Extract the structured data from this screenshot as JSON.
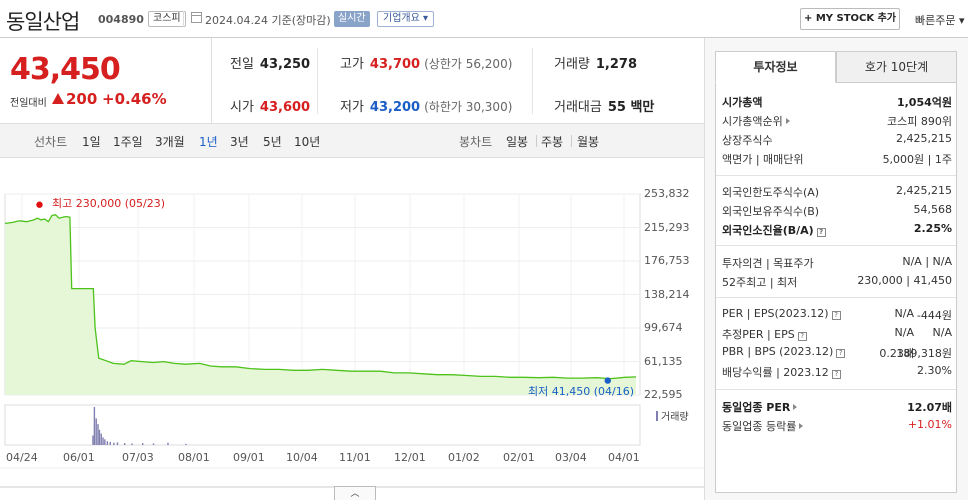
{
  "header": {
    "name": "동일산업",
    "code": "004890",
    "market": "코스피",
    "date": "2024.04.24  기준(장마감)",
    "realtime": "실시간",
    "company_overview": "기업개요 ▾",
    "mystock": "+ MY STOCK 추가",
    "quick_order": "빠른주문 ▾"
  },
  "price": {
    "current": "43,450",
    "compare_label": "전일대비",
    "change": "200",
    "change_pct": "+0.46%"
  },
  "quote": {
    "prev_label": "전일",
    "prev": "43,250",
    "high_label": "고가",
    "high": "43,700",
    "upper_limit": "(상한가 56,200)",
    "volume_label": "거래량",
    "volume": "1,278",
    "open_label": "시가",
    "open": "43,600",
    "low_label": "저가",
    "low": "43,200",
    "lower_limit": "(하한가 30,300)",
    "amount_label": "거래대금",
    "amount": "55 백만"
  },
  "tabs": {
    "line_label": "선차트",
    "periods": [
      "1일",
      "1주일",
      "3개월",
      "1년",
      "3년",
      "5년",
      "10년"
    ],
    "candle_label": "봉차트",
    "candles": [
      "일봉",
      "주봉",
      "월봉"
    ]
  },
  "chart_data": {
    "type": "line",
    "x_ticks": [
      "04/24",
      "06/01",
      "07/03",
      "08/01",
      "09/01",
      "10/04",
      "11/01",
      "12/01",
      "01/02",
      "02/01",
      "03/04",
      "04/01"
    ],
    "y_ticks": [
      "253,832",
      "215,293",
      "176,753",
      "138,214",
      "99,674",
      "61,135",
      "22,595"
    ],
    "ylim": [
      22595,
      253832
    ],
    "series": [
      {
        "values": [
          [
            0,
            220000
          ],
          [
            2,
            221000
          ],
          [
            4,
            223000
          ],
          [
            6,
            222000
          ],
          [
            8,
            224000
          ],
          [
            9,
            226000
          ],
          [
            10,
            224000
          ],
          [
            11,
            225000
          ],
          [
            12,
            222000
          ],
          [
            13,
            229000
          ],
          [
            14,
            230000
          ],
          [
            15,
            226000
          ],
          [
            16,
            227000
          ],
          [
            17,
            228000
          ],
          [
            18,
            227000
          ],
          [
            18.5,
            145000
          ],
          [
            20,
            145000
          ],
          [
            23,
            145000
          ],
          [
            24.5,
            145000
          ],
          [
            25,
            100000
          ],
          [
            26,
            65000
          ],
          [
            28,
            62000
          ],
          [
            30,
            59000
          ],
          [
            33,
            58000
          ],
          [
            35,
            62000
          ],
          [
            38,
            61000
          ],
          [
            41,
            60000
          ],
          [
            44,
            61000
          ],
          [
            47,
            59000
          ],
          [
            50,
            58000
          ],
          [
            54,
            59000
          ],
          [
            57,
            56000
          ],
          [
            60,
            55000
          ],
          [
            64,
            55000
          ],
          [
            68,
            53000
          ],
          [
            72,
            52000
          ],
          [
            76,
            52000
          ],
          [
            80,
            51000
          ],
          [
            84,
            51000
          ],
          [
            88,
            52000
          ],
          [
            92,
            51000
          ],
          [
            96,
            50000
          ],
          [
            100,
            50000
          ],
          [
            104,
            50000
          ],
          [
            108,
            48000
          ],
          [
            112,
            48000
          ],
          [
            116,
            47000
          ],
          [
            120,
            46000
          ],
          [
            124,
            46000
          ],
          [
            128,
            45000
          ],
          [
            132,
            44000
          ],
          [
            136,
            44000
          ],
          [
            140,
            43000
          ],
          [
            144,
            43000
          ],
          [
            148,
            42500
          ],
          [
            152,
            43000
          ],
          [
            156,
            42000
          ],
          [
            160,
            42000
          ],
          [
            164,
            42500
          ],
          [
            168,
            41450
          ],
          [
            172,
            43000
          ],
          [
            175,
            43450
          ]
        ]
      }
    ],
    "high_label": "최고 230,000 (05/23)",
    "low_label": "최저 41,450 (04/16)",
    "volume_legend": "거래량",
    "grid": true
  },
  "volume_bars": [
    [
      24.2,
      0.25
    ],
    [
      24.6,
      1.0
    ],
    [
      25.1,
      0.7
    ],
    [
      25.6,
      0.55
    ],
    [
      26.0,
      0.4
    ],
    [
      26.5,
      0.3
    ],
    [
      27.0,
      0.2
    ],
    [
      27.5,
      0.15
    ],
    [
      28.2,
      0.1
    ],
    [
      29,
      0.08
    ],
    [
      30,
      0.06
    ],
    [
      31,
      0.07
    ],
    [
      33,
      0.05
    ],
    [
      35,
      0.04
    ],
    [
      38,
      0.05
    ],
    [
      41,
      0.04
    ],
    [
      45,
      0.06
    ],
    [
      50,
      0.03
    ]
  ],
  "info": {
    "tab_invest": "투자정보",
    "tab_hoga": "호가 10단계",
    "market_cap_label": "시가총액",
    "market_cap": "1,054억원",
    "market_cap_rank_label": "시가총액순위",
    "market_cap_rank": "코스피 890위",
    "shares_label": "상장주식수",
    "shares": "2,425,215",
    "face_label": "액면가 | 매매단위",
    "face": "5,000원 | 1주",
    "foreign_limit_label": "외국인한도주식수(A)",
    "foreign_limit": "2,425,215",
    "foreign_hold_label": "외국인보유주식수(B)",
    "foreign_hold": "54,568",
    "foreign_ratio_label": "외국인소진율(B/A)",
    "foreign_ratio": "2.25%",
    "opinion_label": "투자의견 | 목표주가",
    "opinion": "N/A | N/A",
    "w52_label": "52주최고 | 최저",
    "w52": "230,000 | 41,450",
    "per_label": "PER | EPS(2023.12)",
    "per": "N/A",
    "eps": "-444원",
    "est_per_label": "추정PER | EPS",
    "est_per": "N/A",
    "est_eps": "N/A",
    "pbr_label": "PBR | BPS (2023.12)",
    "pbr": "0.23배",
    "bps": "189,318원",
    "div_label": "배당수익률 | 2023.12",
    "div": "2.30%",
    "ind_per_label": "동일업종 PER",
    "ind_per": "12.07배",
    "ind_rate_label": "동일업종 등락률",
    "ind_rate": "+1.01%"
  }
}
